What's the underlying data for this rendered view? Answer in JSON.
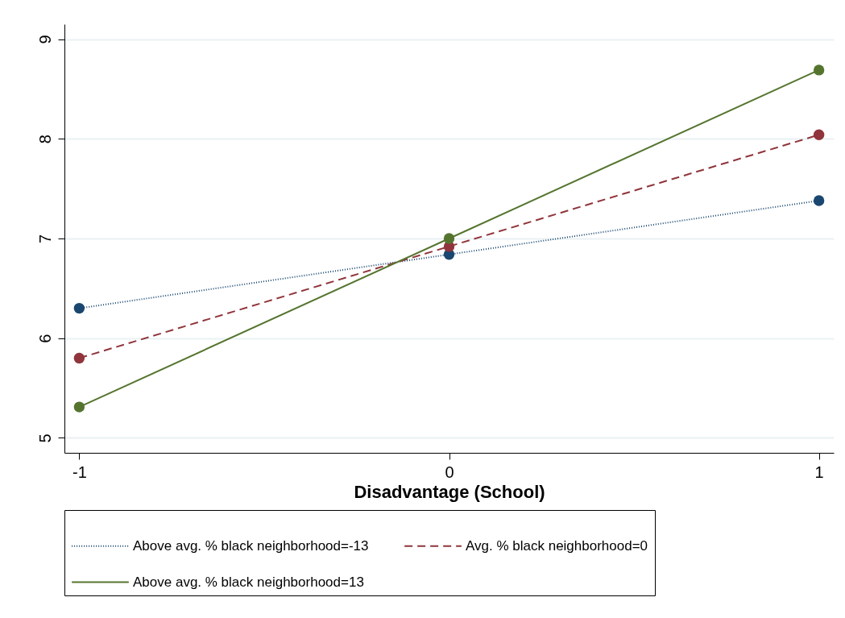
{
  "chart_data": {
    "type": "line",
    "xlabel": "Disadvantage (School)",
    "x": [
      -1,
      0,
      1
    ],
    "xlim": [
      -1.04,
      1.04
    ],
    "xticks": [
      -1,
      0,
      1
    ],
    "ylim": [
      4.85,
      9.15
    ],
    "yticks": [
      5,
      6,
      7,
      8,
      9
    ],
    "grid": "y",
    "legend": "bottom",
    "marker": "circle",
    "series": [
      {
        "name": "Above avg. % black neighborhood=-13",
        "color": "#1a476f",
        "line_style": "dotted",
        "values": [
          6.3,
          6.84,
          7.38
        ]
      },
      {
        "name": "Avg. % black neighborhood=0",
        "color": "#90353b",
        "line_style": "dashed",
        "values": [
          5.8,
          6.92,
          8.04
        ]
      },
      {
        "name": "Above avg. % black neighborhood=13",
        "color": "#55752f",
        "line_style": "solid",
        "values": [
          5.31,
          7.0,
          8.69
        ]
      }
    ]
  }
}
